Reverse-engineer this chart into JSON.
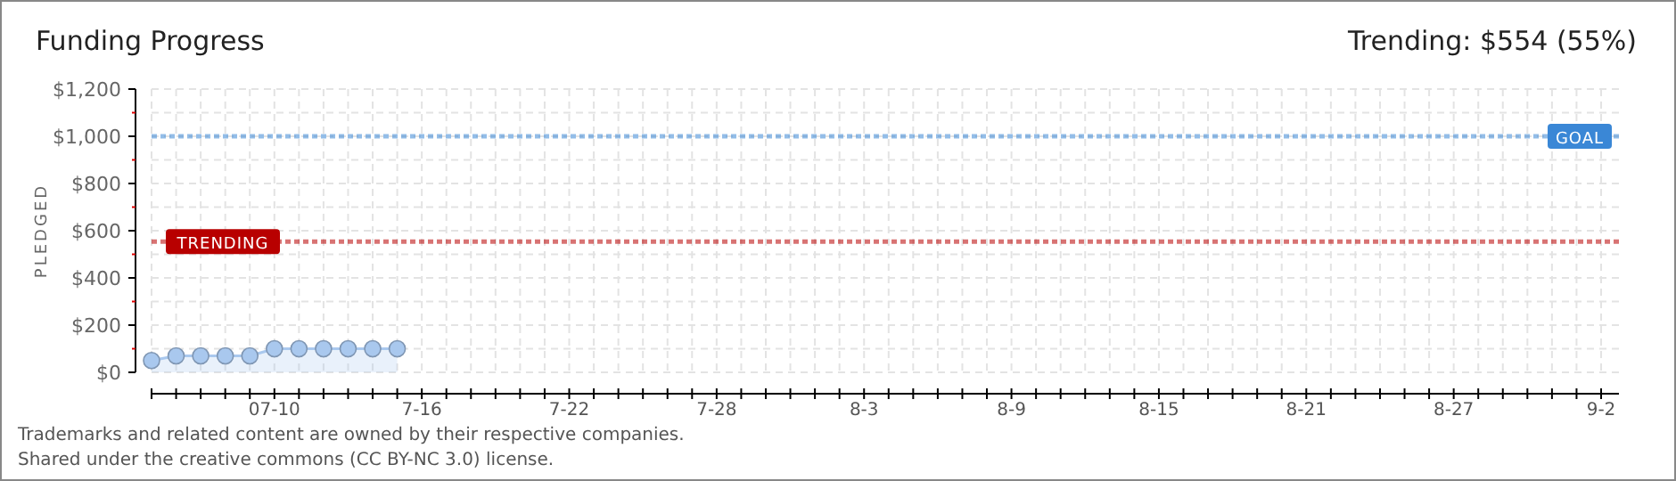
{
  "chart_data": {
    "type": "area",
    "title": "Funding Progress",
    "subtitle": "Trending: $554 (55%)",
    "ylabel": "PLEDGED",
    "x": [
      "--07-05",
      "--07-06",
      "--07-07",
      "--07-08",
      "--07-09",
      "--07-10",
      "--07-11",
      "--07-12",
      "--07-13",
      "--07-14",
      "--07-15"
    ],
    "series": [
      {
        "color": "#a9c8ee",
        "values": [
          50,
          70,
          70,
          70,
          70,
          100,
          100,
          100,
          100,
          100,
          100
        ]
      }
    ],
    "marker": "circle",
    "grid": true,
    "xlim": [
      "--07-05",
      "--09-02"
    ],
    "xticks": [
      {
        "value": "--07-05",
        "label": null
      },
      {
        "value": "--07-06",
        "label": null
      },
      {
        "value": "--07-07",
        "label": null
      },
      {
        "value": "--07-08",
        "label": null
      },
      {
        "value": "--07-09",
        "label": null
      },
      {
        "value": "--07-10",
        "label": "07-10"
      },
      {
        "value": "--07-11",
        "label": null
      },
      {
        "value": "--07-12",
        "label": null
      },
      {
        "value": "--07-13",
        "label": null
      },
      {
        "value": "--07-14",
        "label": null
      },
      {
        "value": "--07-15",
        "label": null
      },
      {
        "value": "--07-16",
        "label": "7-16"
      },
      {
        "value": "--07-17",
        "label": null
      },
      {
        "value": "--07-18",
        "label": null
      },
      {
        "value": "--07-19",
        "label": null
      },
      {
        "value": "--07-20",
        "label": null
      },
      {
        "value": "--07-21",
        "label": null
      },
      {
        "value": "--07-22",
        "label": "7-22"
      },
      {
        "value": "--07-23",
        "label": null
      },
      {
        "value": "--07-24",
        "label": null
      },
      {
        "value": "--07-25",
        "label": null
      },
      {
        "value": "--07-26",
        "label": null
      },
      {
        "value": "--07-27",
        "label": null
      },
      {
        "value": "--07-28",
        "label": "7-28"
      },
      {
        "value": "--07-29",
        "label": null
      },
      {
        "value": "--07-30",
        "label": null
      },
      {
        "value": "--07-31",
        "label": null
      },
      {
        "value": "--08-01",
        "label": null
      },
      {
        "value": "--08-02",
        "label": null
      },
      {
        "value": "--08-03",
        "label": "8-3"
      },
      {
        "value": "--08-04",
        "label": null
      },
      {
        "value": "--08-05",
        "label": null
      },
      {
        "value": "--08-06",
        "label": null
      },
      {
        "value": "--08-07",
        "label": null
      },
      {
        "value": "--08-08",
        "label": null
      },
      {
        "value": "--08-09",
        "label": "8-9"
      },
      {
        "value": "--08-10",
        "label": null
      },
      {
        "value": "--08-11",
        "label": null
      },
      {
        "value": "--08-12",
        "label": null
      },
      {
        "value": "--08-13",
        "label": null
      },
      {
        "value": "--08-14",
        "label": null
      },
      {
        "value": "--08-15",
        "label": "8-15"
      },
      {
        "value": "--08-16",
        "label": null
      },
      {
        "value": "--08-17",
        "label": null
      },
      {
        "value": "--08-18",
        "label": null
      },
      {
        "value": "--08-19",
        "label": null
      },
      {
        "value": "--08-20",
        "label": null
      },
      {
        "value": "--08-21",
        "label": "8-21"
      },
      {
        "value": "--08-22",
        "label": null
      },
      {
        "value": "--08-23",
        "label": null
      },
      {
        "value": "--08-24",
        "label": null
      },
      {
        "value": "--08-25",
        "label": null
      },
      {
        "value": "--08-26",
        "label": null
      },
      {
        "value": "--08-27",
        "label": "8-27"
      },
      {
        "value": "--08-28",
        "label": null
      },
      {
        "value": "--08-29",
        "label": null
      },
      {
        "value": "--08-30",
        "label": null
      },
      {
        "value": "--08-31",
        "label": null
      },
      {
        "value": "--09-01",
        "label": null
      },
      {
        "value": "--09-02",
        "label": "9-2"
      }
    ],
    "ylim": [
      0,
      1200
    ],
    "yticks": [
      {
        "value": 0,
        "label": "$0"
      },
      {
        "value": 100,
        "label": null
      },
      {
        "value": 200,
        "label": "$200"
      },
      {
        "value": 300,
        "label": null
      },
      {
        "value": 400,
        "label": "$400"
      },
      {
        "value": 500,
        "label": null
      },
      {
        "value": 600,
        "label": "$600"
      },
      {
        "value": 700,
        "label": null
      },
      {
        "value": 800,
        "label": "$800"
      },
      {
        "value": 900,
        "label": null
      },
      {
        "value": 1000,
        "label": "$1,000"
      },
      {
        "value": 1100,
        "label": null
      },
      {
        "value": 1200,
        "label": "$1,200"
      }
    ],
    "ref_lines": [
      {
        "axis": "y",
        "value": 1000,
        "label": "GOAL",
        "color": "#3a87d6",
        "line_style": "dotted"
      },
      {
        "axis": "y",
        "value": 554,
        "label": "TRENDING",
        "color": "#b80000",
        "line_style": "dotted"
      }
    ],
    "annotations": [
      "Trademarks and related content are owned by their respective companies.",
      "Shared under the creative commons (CC BY-NC 3.0) license."
    ]
  }
}
